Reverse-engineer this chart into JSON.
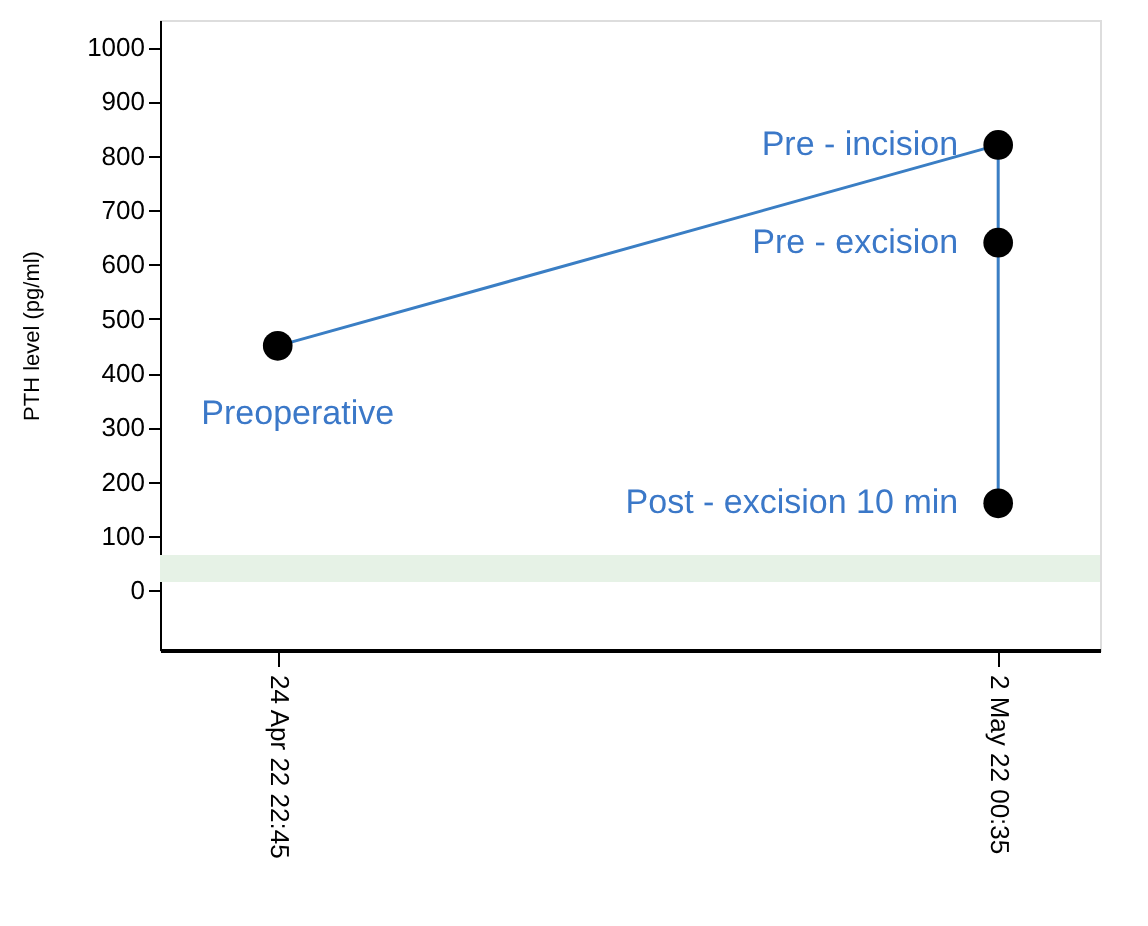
{
  "chart_data": {
    "type": "line",
    "ylabel": "PTH level (pg/ml)",
    "x": [
      "2022-04-24T22:45",
      "2022-05-02T00:35",
      "2022-05-02T00:35",
      "2022-05-02T00:35"
    ],
    "series": [
      {
        "color": "#3a7ec4",
        "values": [
          450,
          820,
          640,
          160
        ]
      }
    ],
    "marker": "circle",
    "line_style": "solid",
    "grid": false,
    "xlim": [
      "2022-04-23T19:00",
      "2022-05-03T00:35"
    ],
    "xticks": [
      {
        "value": "2022-04-24T22:45",
        "label": "24 Apr 22 22:45"
      },
      {
        "value": "2022-05-02T00:35",
        "label": "2 May 22 00:35"
      }
    ],
    "ylim": [
      -110,
      1050
    ],
    "yticks": [
      0,
      100,
      200,
      300,
      400,
      500,
      600,
      700,
      800,
      900,
      1000
    ],
    "bands": [
      {
        "axis": "y",
        "from": 15,
        "to": 65,
        "color": "#e6f2e6"
      }
    ],
    "annotations": [
      {
        "text": "Preoperative",
        "x": "2022-04-24T22:45",
        "y": 450
      },
      {
        "text": "Pre - incision",
        "x": "2022-05-02T00:35",
        "y": 820
      },
      {
        "text": "Pre - excision",
        "x": "2022-05-02T00:35",
        "y": 640
      },
      {
        "text": "Post - excision 10 min",
        "x": "2022-05-02T00:35",
        "y": 160
      }
    ]
  }
}
